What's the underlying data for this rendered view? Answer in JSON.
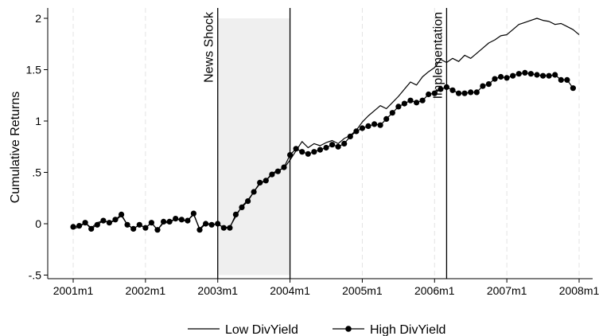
{
  "chart_data": {
    "type": "line",
    "title": "",
    "xlabel": "",
    "ylabel": "Cumulative Returns",
    "ylim": [
      -0.5,
      2
    ],
    "x_start_month": "2001m1",
    "x_tick_labels": [
      "2001m1",
      "2002m1",
      "2003m1",
      "2004m1",
      "2005m1",
      "2006m1",
      "2007m1",
      "2008m1"
    ],
    "x_ticks_months": [
      0,
      12,
      24,
      36,
      48,
      60,
      72,
      84
    ],
    "y_ticks": [
      -0.5,
      0,
      0.5,
      1,
      1.5,
      2
    ],
    "y_tick_labels": [
      "-.5",
      "0",
      ".5",
      "1",
      "1.5",
      "2"
    ],
    "grid": {
      "x": true,
      "y": false,
      "style": "dashed-light"
    },
    "shaded_region": {
      "from_month": 24,
      "to_month": 36,
      "ymin": -0.5,
      "ymax": 2
    },
    "vlines": [
      {
        "month": 24,
        "label": "News Shock"
      },
      {
        "month": 36,
        "label": ""
      },
      {
        "month": 62,
        "label": "Implementation"
      }
    ],
    "legend": {
      "position": "bottom-center"
    },
    "series": [
      {
        "name": "Low DivYield",
        "style": "line",
        "color": "#000000",
        "values": [
          -0.05,
          -0.03,
          0.01,
          -0.04,
          0.01,
          0.03,
          0.01,
          0.03,
          0.08,
          -0.01,
          -0.05,
          -0.01,
          -0.04,
          0.01,
          -0.06,
          0.01,
          0.01,
          0.05,
          0.03,
          0.03,
          0.09,
          -0.05,
          0.01,
          -0.01,
          0.0,
          -0.04,
          -0.03,
          0.07,
          0.17,
          0.23,
          0.31,
          0.39,
          0.42,
          0.49,
          0.52,
          0.54,
          0.62,
          0.71,
          0.8,
          0.74,
          0.78,
          0.76,
          0.79,
          0.81,
          0.78,
          0.83,
          0.86,
          0.91,
          0.99,
          1.05,
          1.1,
          1.15,
          1.12,
          1.18,
          1.24,
          1.31,
          1.38,
          1.35,
          1.43,
          1.48,
          1.52,
          1.6,
          1.57,
          1.61,
          1.58,
          1.64,
          1.61,
          1.66,
          1.71,
          1.76,
          1.79,
          1.83,
          1.84,
          1.89,
          1.94,
          1.96,
          1.98,
          2.0,
          1.98,
          1.97,
          1.94,
          1.95,
          1.92,
          1.89,
          1.84
        ]
      },
      {
        "name": "High DivYield",
        "style": "line-marker",
        "color": "#000000",
        "values": [
          -0.03,
          -0.02,
          0.01,
          -0.05,
          -0.01,
          0.03,
          0.01,
          0.04,
          0.09,
          -0.01,
          -0.05,
          -0.01,
          -0.04,
          0.01,
          -0.06,
          0.02,
          0.02,
          0.05,
          0.04,
          0.03,
          0.1,
          -0.06,
          0.0,
          -0.01,
          0.0,
          -0.04,
          -0.04,
          0.09,
          0.16,
          0.22,
          0.31,
          0.4,
          0.42,
          0.48,
          0.51,
          0.55,
          0.67,
          0.73,
          0.7,
          0.68,
          0.7,
          0.72,
          0.74,
          0.77,
          0.75,
          0.78,
          0.85,
          0.9,
          0.93,
          0.95,
          0.97,
          0.96,
          1.02,
          1.08,
          1.14,
          1.17,
          1.2,
          1.18,
          1.2,
          1.26,
          1.27,
          1.31,
          1.33,
          1.3,
          1.27,
          1.27,
          1.28,
          1.28,
          1.34,
          1.36,
          1.41,
          1.43,
          1.42,
          1.44,
          1.46,
          1.47,
          1.46,
          1.45,
          1.44,
          1.44,
          1.45,
          1.4,
          1.4,
          1.32
        ]
      }
    ]
  }
}
